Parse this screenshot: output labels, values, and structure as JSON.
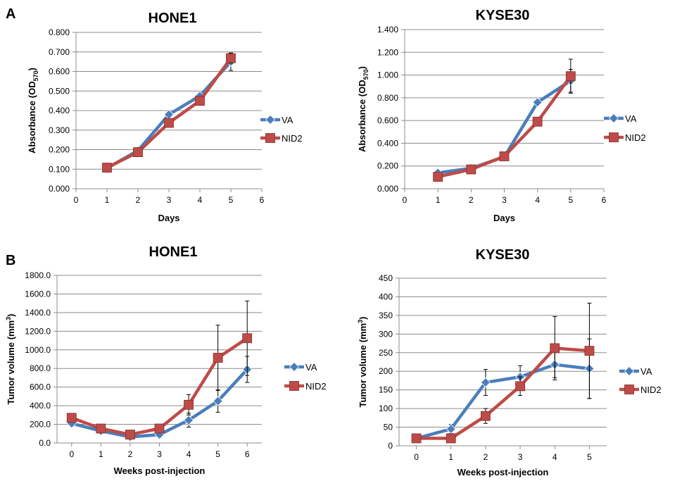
{
  "panels": [
    "A",
    "B"
  ],
  "series_colors": {
    "VA": "#4a7ebb",
    "NID2": "#be4b48"
  },
  "chart_data": [
    {
      "type": "line",
      "title": "HONE1",
      "xlabel": "Days",
      "ylabel": "Absorbance (OD",
      "ylabel_sub": "570",
      "ylabel_suffix": ")",
      "xlim": [
        0,
        6
      ],
      "ylim": [
        0,
        0.8
      ],
      "xticks": [
        0,
        1,
        2,
        3,
        4,
        5,
        6
      ],
      "yticks": [
        0,
        0.1,
        0.2,
        0.3,
        0.4,
        0.5,
        0.6,
        0.7,
        0.8
      ],
      "ytick_labels": [
        "0.000",
        "0.100",
        "0.200",
        "0.300",
        "0.400",
        "0.500",
        "0.600",
        "0.700",
        "0.800"
      ],
      "grid": true,
      "legend": "right",
      "x": [
        1,
        2,
        3,
        4,
        5
      ],
      "series": [
        {
          "name": "VA",
          "marker": "diamond",
          "values": [
            0.105,
            0.195,
            0.38,
            0.475,
            0.65
          ],
          "errors": [
            0,
            0,
            0,
            0,
            0.045
          ]
        },
        {
          "name": "NID2",
          "marker": "square",
          "values": [
            0.108,
            0.187,
            0.337,
            0.45,
            0.668
          ],
          "errors": [
            0,
            0,
            0,
            0,
            0.025
          ]
        }
      ]
    },
    {
      "type": "line",
      "title": "KYSE30",
      "xlabel": "Days",
      "ylabel": "Absorbance (OD",
      "ylabel_sub": "570",
      "ylabel_suffix": ")",
      "xlim": [
        0,
        6
      ],
      "ylim": [
        0,
        1.4
      ],
      "xticks": [
        0,
        1,
        2,
        3,
        4,
        5,
        6
      ],
      "yticks": [
        0,
        0.2,
        0.4,
        0.6,
        0.8,
        1.0,
        1.2,
        1.4
      ],
      "ytick_labels": [
        "0.000",
        "0.200",
        "0.400",
        "0.600",
        "0.800",
        "1.000",
        "1.200",
        "1.400"
      ],
      "grid": true,
      "legend": "right",
      "x": [
        1,
        2,
        3,
        4,
        5
      ],
      "series": [
        {
          "name": "VA",
          "marker": "diamond",
          "values": [
            0.14,
            0.18,
            0.28,
            0.76,
            0.95
          ],
          "errors": [
            0,
            0,
            0,
            0,
            0.1
          ]
        },
        {
          "name": "NID2",
          "marker": "square",
          "values": [
            0.105,
            0.17,
            0.285,
            0.59,
            0.99
          ],
          "errors": [
            0,
            0,
            0,
            0,
            0.15
          ]
        }
      ]
    },
    {
      "type": "line",
      "title": "HONE1",
      "xlabel": "Weeks post-injection",
      "ylabel": "Tumor volume (mm",
      "ylabel_sup": "3",
      "ylabel_suffix": ")",
      "xlim": [
        -0.5,
        6.5
      ],
      "ylim": [
        0,
        1800
      ],
      "xticks": [
        0,
        1,
        2,
        3,
        4,
        5,
        6
      ],
      "yticks": [
        0,
        200,
        400,
        600,
        800,
        1000,
        1200,
        1400,
        1600,
        1800
      ],
      "ytick_labels": [
        "0.0",
        "200.0",
        "400.0",
        "600.0",
        "800.0",
        "1000.0",
        "1200.0",
        "1400.0",
        "1600.0",
        "1800.0"
      ],
      "grid": true,
      "legend": "right",
      "x": [
        0,
        1,
        2,
        3,
        4,
        5,
        6
      ],
      "series": [
        {
          "name": "VA",
          "marker": "diamond",
          "values": [
            210,
            130,
            65,
            90,
            245,
            450,
            790
          ],
          "errors": [
            0,
            0,
            0,
            0,
            75,
            120,
            140
          ]
        },
        {
          "name": "NID2",
          "marker": "square",
          "values": [
            270,
            155,
            90,
            155,
            410,
            915,
            1125
          ],
          "errors": [
            0,
            0,
            0,
            0,
            110,
            350,
            400
          ]
        }
      ]
    },
    {
      "type": "line",
      "title": "KYSE30",
      "xlabel": "Weeks post-injection",
      "ylabel": "Tumor volume (mm",
      "ylabel_sup": "3",
      "ylabel_suffix": ")",
      "xlim": [
        -0.5,
        5.5
      ],
      "ylim": [
        0,
        450
      ],
      "xticks": [
        0,
        1,
        2,
        3,
        4,
        5
      ],
      "yticks": [
        0,
        50,
        100,
        150,
        200,
        250,
        300,
        350,
        400,
        450
      ],
      "ytick_labels": [
        "0",
        "50",
        "100",
        "150",
        "200",
        "250",
        "300",
        "350",
        "400",
        "450"
      ],
      "grid": true,
      "legend": "right",
      "x": [
        0,
        1,
        2,
        3,
        4,
        5
      ],
      "series": [
        {
          "name": "VA",
          "marker": "diamond",
          "values": [
            20,
            45,
            170,
            185,
            218,
            207
          ],
          "errors": [
            0,
            12,
            35,
            30,
            35,
            80
          ]
        },
        {
          "name": "NID2",
          "marker": "square",
          "values": [
            20,
            20,
            80,
            160,
            262,
            255
          ],
          "errors": [
            0,
            0,
            20,
            25,
            85,
            128
          ]
        }
      ]
    }
  ]
}
